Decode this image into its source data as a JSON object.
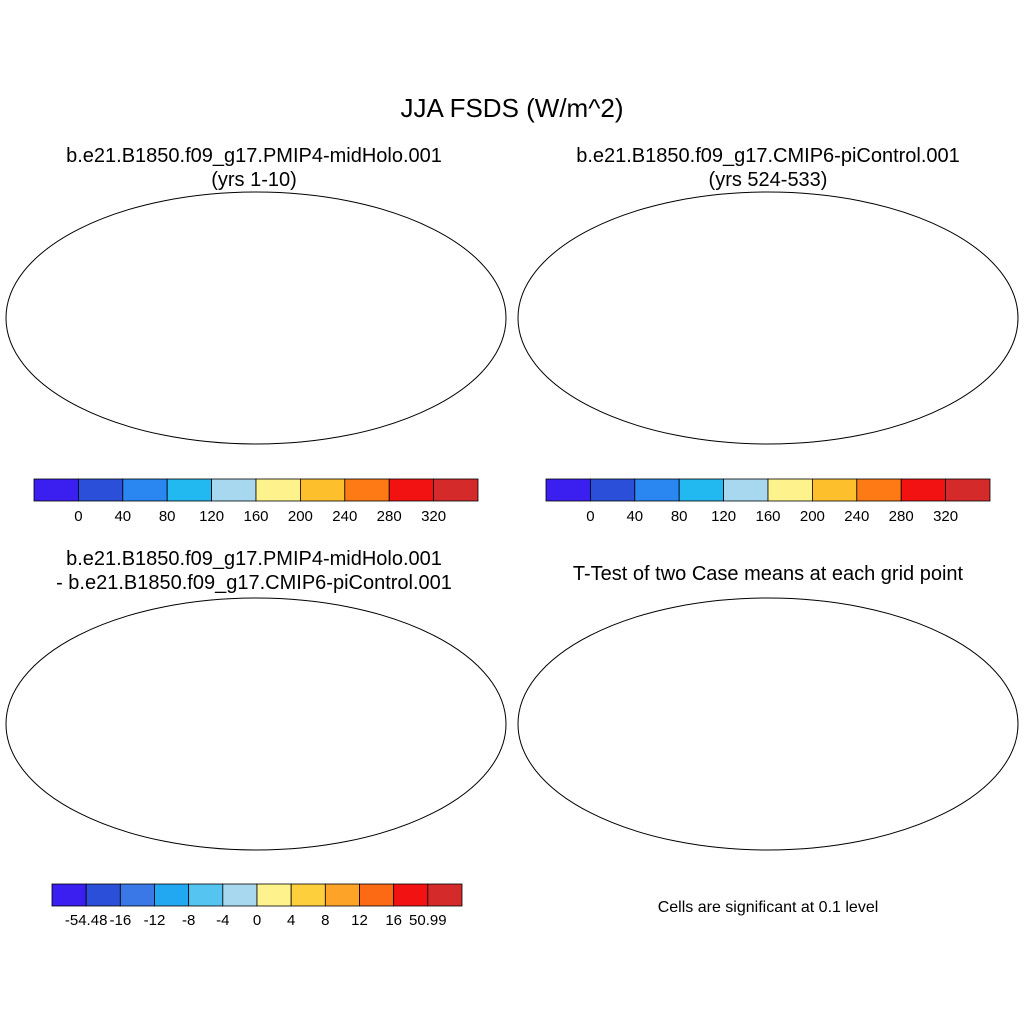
{
  "main_title": "JJA FSDS (W/m^2)",
  "panels": [
    {
      "title_line1": "b.e21.B1850.f09_g17.PMIP4-midHolo.001",
      "title_line2": "(yrs 1-10)"
    },
    {
      "title_line1": "b.e21.B1850.f09_g17.CMIP6-piControl.001",
      "title_line2": "(yrs 524-533)"
    },
    {
      "title_line1": "b.e21.B1850.f09_g17.PMIP4-midHolo.001",
      "title_line2": "- b.e21.B1850.f09_g17.CMIP6-piControl.001"
    },
    {
      "title_line1": "T-Test of two Case means at each grid point",
      "footer": "Cells are significant at 0.1 level"
    }
  ],
  "colorbar_abs": {
    "colors": [
      "#3a1ff0",
      "#2b4fd8",
      "#2a86f0",
      "#22b8f0",
      "#a8d8f0",
      "#fdf28c",
      "#fdc02c",
      "#fd7a14",
      "#f21212",
      "#d42a2a"
    ],
    "labels": [
      "0",
      "40",
      "80",
      "120",
      "160",
      "200",
      "240",
      "280",
      "320"
    ]
  },
  "colorbar_diff": {
    "colors": [
      "#3a1ff0",
      "#2b4fd8",
      "#3a78e8",
      "#22a8f0",
      "#56c4f0",
      "#a8d8f0",
      "#fdf28c",
      "#fdcf3c",
      "#fda428",
      "#fd6a14",
      "#f21212",
      "#d42a2a"
    ],
    "labels": [
      "-54.48",
      "-16",
      "-12",
      "-8",
      "-4",
      "0",
      "4",
      "8",
      "12",
      "16",
      "50.99"
    ]
  },
  "significance_color": "#ff0000"
}
